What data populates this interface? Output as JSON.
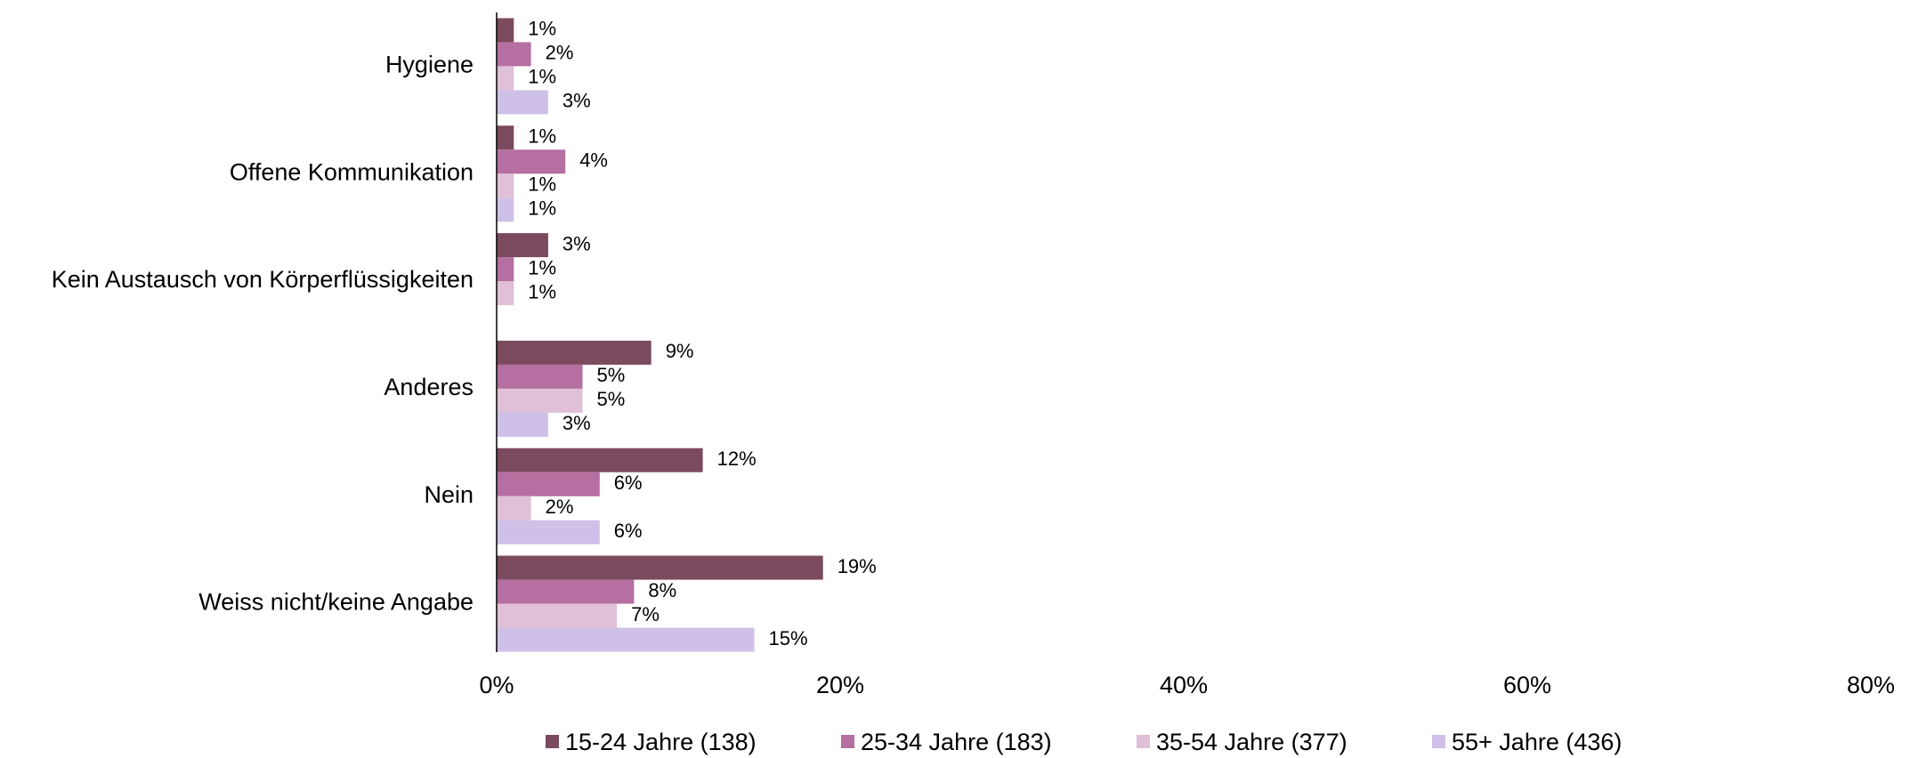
{
  "chart_data": {
    "type": "bar",
    "orientation": "horizontal",
    "categories": [
      "Hygiene",
      "Offene Kommunikation",
      "Kein Austausch von Körperflüssigkeiten",
      "Anderes",
      "Nein",
      "Weiss nicht/keine Angabe"
    ],
    "series": [
      {
        "name": "15-24 Jahre (138)",
        "color": "#7b4a5e",
        "values": [
          1,
          1,
          3,
          9,
          12,
          19
        ],
        "value_labels": [
          "1%",
          "1%",
          "3%",
          "9%",
          "12%",
          "19%"
        ]
      },
      {
        "name": "25-34 Jahre (183)",
        "color": "#b56fa0",
        "values": [
          2,
          4,
          1,
          5,
          6,
          8
        ],
        "value_labels": [
          "2%",
          "4%",
          "1%",
          "5%",
          "6%",
          "8%"
        ]
      },
      {
        "name": "35-54 Jahre (377)",
        "color": "#dfc0d6",
        "values": [
          1,
          1,
          1,
          5,
          2,
          7
        ],
        "value_labels": [
          "1%",
          "1%",
          "1%",
          "5%",
          "2%",
          "7%"
        ]
      },
      {
        "name": "55+ Jahre (436)",
        "color": "#cfc0e8",
        "values": [
          3,
          1,
          null,
          3,
          6,
          15
        ],
        "value_labels": [
          "3%",
          "1%",
          null,
          "3%",
          "6%",
          "15%"
        ]
      }
    ],
    "xlim": [
      0,
      80
    ],
    "xticks": [
      {
        "value": 0,
        "label": "0%"
      },
      {
        "value": 20,
        "label": "20%"
      },
      {
        "value": 40,
        "label": "40%"
      },
      {
        "value": 60,
        "label": "60%"
      },
      {
        "value": 80,
        "label": "80%"
      }
    ],
    "legend": "bottom"
  }
}
